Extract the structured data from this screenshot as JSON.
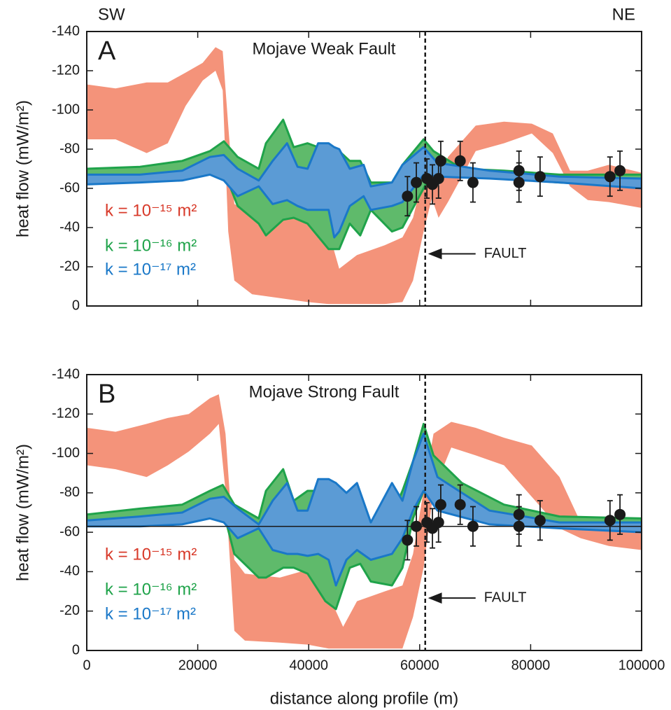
{
  "chart_data": [
    {
      "type": "band",
      "panel_label": "A",
      "title": "Mojave Weak Fault",
      "left_label": "SW",
      "right_label": "NE",
      "ylabel": "heat flow (mW/m²)",
      "xlim": [
        0,
        100000
      ],
      "ylim": [
        0,
        -140
      ],
      "xticks": [
        0,
        20000,
        40000,
        60000,
        80000,
        100000
      ],
      "yticks": [
        0,
        -20,
        -40,
        -60,
        -80,
        -100,
        -120,
        -140
      ],
      "show_xtick_labels": false,
      "series": [
        {
          "name": "k = 10⁻¹⁵ m²",
          "color": "#f4937a",
          "label_color": "#d83a2a",
          "x": [
            0,
            5200,
            10800,
            14600,
            17800,
            20900,
            23200,
            24500,
            25500,
            26600,
            29800,
            34800,
            39800,
            43600,
            45500,
            48700,
            53700,
            56900,
            58800,
            60700,
            62200,
            63400,
            65100,
            70100,
            75200,
            80200,
            84000,
            87100,
            90300,
            94100,
            100000
          ],
          "top": [
            -113,
            -111,
            -114,
            -114,
            -119,
            -124,
            -132,
            -130,
            -92,
            -52,
            -47,
            -49,
            -49,
            -38,
            -19,
            -26,
            -31,
            -35,
            -45,
            -67,
            -79,
            -60,
            -76,
            -92,
            -94,
            -93,
            -88,
            -69,
            -69,
            -72,
            -68
          ],
          "bottom": [
            -85,
            -85,
            -78,
            -83,
            -102,
            -115,
            -120,
            -110,
            -38,
            -13,
            -6,
            -4,
            -2,
            -1,
            -1,
            -1,
            -1,
            -2,
            -13,
            -38,
            -55,
            -45,
            -53,
            -79,
            -83,
            -88,
            -78,
            -61,
            -54,
            -53,
            -50
          ]
        },
        {
          "name": "k = 10⁻¹⁶ m²",
          "color": "#5fba6b",
          "edge": "#1fa34a",
          "label_color": "#1fa34a",
          "x": [
            0,
            9600,
            17200,
            22200,
            24700,
            27200,
            31000,
            32300,
            35400,
            37300,
            39800,
            43600,
            45500,
            47400,
            49300,
            51200,
            55000,
            56900,
            60700,
            62500,
            67600,
            75200,
            85200,
            100000
          ],
          "top": [
            -70,
            -71,
            -74,
            -79,
            -84,
            -76,
            -70,
            -83,
            -95,
            -81,
            -83,
            -79,
            -79,
            -74,
            -74,
            -63,
            -63,
            -72,
            -85,
            -79,
            -70,
            -69,
            -67,
            -67
          ],
          "bottom": [
            -65,
            -65,
            -67,
            -70,
            -69,
            -51,
            -42,
            -36,
            -44,
            -45,
            -42,
            -29,
            -29,
            -42,
            -36,
            -49,
            -38,
            -40,
            -60,
            -69,
            -67,
            -65,
            -63,
            -61
          ]
        },
        {
          "name": "k = 10⁻¹⁷ m²",
          "color": "#5b9bd5",
          "edge": "#1a78c8",
          "label_color": "#1a78c8",
          "x": [
            0,
            9600,
            17200,
            22200,
            24700,
            27200,
            31000,
            33500,
            36100,
            38000,
            39800,
            41700,
            43600,
            44600,
            45500,
            47400,
            49900,
            51200,
            55000,
            56900,
            60700,
            63200,
            72600,
            85200,
            100000
          ],
          "top": [
            -67,
            -67,
            -69,
            -76,
            -77,
            -70,
            -64,
            -74,
            -83,
            -71,
            -70,
            -83,
            -83,
            -81,
            -80,
            -70,
            -72,
            -61,
            -63,
            -72,
            -81,
            -73,
            -69,
            -66,
            -65
          ],
          "bottom": [
            -62,
            -63,
            -64,
            -67,
            -64,
            -56,
            -61,
            -52,
            -54,
            -51,
            -49,
            -49,
            -49,
            -35,
            -38,
            -51,
            -56,
            -49,
            -51,
            -53,
            -67,
            -66,
            -65,
            -63,
            -60
          ]
        }
      ],
      "points": {
        "color": "#1a1a1a",
        "x": [
          57800,
          59400,
          61300,
          62300,
          63400,
          63800,
          67300,
          69600,
          77900,
          77900,
          81700,
          94300,
          96100
        ],
        "values": [
          -56,
          -63,
          -65,
          -62,
          -65,
          -74,
          -74,
          -63,
          -69,
          -63,
          -66,
          -66,
          -69
        ],
        "errors": [
          10,
          10,
          10,
          10,
          10,
          10,
          10,
          10,
          10,
          10,
          10,
          10,
          10
        ]
      },
      "fault_x": 61000,
      "fault_label": "FAULT"
    },
    {
      "type": "band",
      "panel_label": "B",
      "title": "Mojave Strong Fault",
      "ylabel": "heat flow (mW/m²)",
      "xlabel": "distance along profile (m)",
      "xlim": [
        0,
        100000
      ],
      "ylim": [
        0,
        -140
      ],
      "xticks": [
        0,
        20000,
        40000,
        60000,
        80000,
        100000
      ],
      "yticks": [
        0,
        -20,
        -40,
        -60,
        -80,
        -100,
        -120,
        -140
      ],
      "show_xtick_labels": true,
      "hline": -63,
      "series": [
        {
          "name": "k = 10⁻¹⁵ m²",
          "color": "#f4937a",
          "label_color": "#d83a2a",
          "x": [
            0,
            5200,
            10800,
            14600,
            18400,
            22200,
            23800,
            25000,
            26600,
            28500,
            34800,
            39800,
            43600,
            46200,
            48700,
            53700,
            56900,
            58800,
            60700,
            62500,
            65700,
            70100,
            75200,
            80200,
            85200,
            89000,
            94100,
            100000
          ],
          "top": [
            -113,
            -111,
            -115,
            -118,
            -120,
            -128,
            -130,
            -110,
            -46,
            -39,
            -37,
            -41,
            -28,
            -12,
            -25,
            -30,
            -33,
            -49,
            -81,
            -110,
            -116,
            -113,
            -108,
            -104,
            -88,
            -65,
            -62,
            -60
          ],
          "bottom": [
            -94,
            -92,
            -88,
            -94,
            -101,
            -110,
            -115,
            -81,
            -10,
            -5,
            -4,
            -3,
            -1,
            -1,
            -1,
            -1,
            -1,
            -17,
            -42,
            -81,
            -103,
            -99,
            -94,
            -78,
            -62,
            -57,
            -53,
            -51
          ]
        },
        {
          "name": "k = 10⁻¹⁶ m²",
          "color": "#5fba6b",
          "edge": "#1fa34a",
          "label_color": "#1fa34a",
          "x": [
            0,
            9600,
            17200,
            22200,
            24500,
            26600,
            31000,
            32300,
            35400,
            37300,
            39800,
            43000,
            44900,
            47400,
            49300,
            51200,
            55000,
            56900,
            58800,
            60700,
            62500,
            67600,
            75200,
            85200,
            100000
          ],
          "top": [
            -69,
            -72,
            -74,
            -81,
            -84,
            -74,
            -67,
            -81,
            -92,
            -76,
            -81,
            -81,
            -85,
            -69,
            -76,
            -65,
            -69,
            -81,
            -96,
            -115,
            -99,
            -85,
            -74,
            -68,
            -67
          ],
          "bottom": [
            -65,
            -65,
            -67,
            -71,
            -72,
            -49,
            -37,
            -37,
            -42,
            -42,
            -39,
            -25,
            -21,
            -42,
            -44,
            -35,
            -33,
            -42,
            -67,
            -81,
            -74,
            -69,
            -67,
            -64,
            -63
          ]
        },
        {
          "name": "k = 10⁻¹⁷ m²",
          "color": "#5b9bd5",
          "edge": "#1a78c8",
          "label_color": "#1a78c8",
          "x": [
            0,
            9600,
            17200,
            22200,
            24700,
            27200,
            31000,
            33500,
            36100,
            38000,
            39800,
            41700,
            43600,
            44900,
            46800,
            48700,
            51200,
            55000,
            56900,
            58800,
            60700,
            63200,
            72600,
            85200,
            100000
          ],
          "top": [
            -66,
            -68,
            -70,
            -77,
            -78,
            -72,
            -64,
            -76,
            -85,
            -71,
            -71,
            -87,
            -87,
            -85,
            -80,
            -85,
            -65,
            -85,
            -76,
            -96,
            -110,
            -88,
            -71,
            -65,
            -65
          ],
          "bottom": [
            -63,
            -63,
            -64,
            -67,
            -65,
            -57,
            -62,
            -51,
            -49,
            -49,
            -48,
            -49,
            -46,
            -33,
            -46,
            -51,
            -46,
            -49,
            -57,
            -71,
            -81,
            -71,
            -64,
            -62,
            -60
          ]
        }
      ],
      "points": {
        "color": "#1a1a1a",
        "x": [
          57800,
          59400,
          61300,
          62300,
          63400,
          63800,
          67300,
          69600,
          77900,
          77900,
          81700,
          94300,
          96100
        ],
        "values": [
          -56,
          -63,
          -65,
          -62,
          -65,
          -74,
          -74,
          -63,
          -69,
          -63,
          -66,
          -66,
          -69
        ],
        "errors": [
          10,
          10,
          10,
          10,
          10,
          10,
          10,
          10,
          10,
          10,
          10,
          10,
          10
        ]
      },
      "fault_x": 61000,
      "fault_label": "FAULT"
    }
  ]
}
